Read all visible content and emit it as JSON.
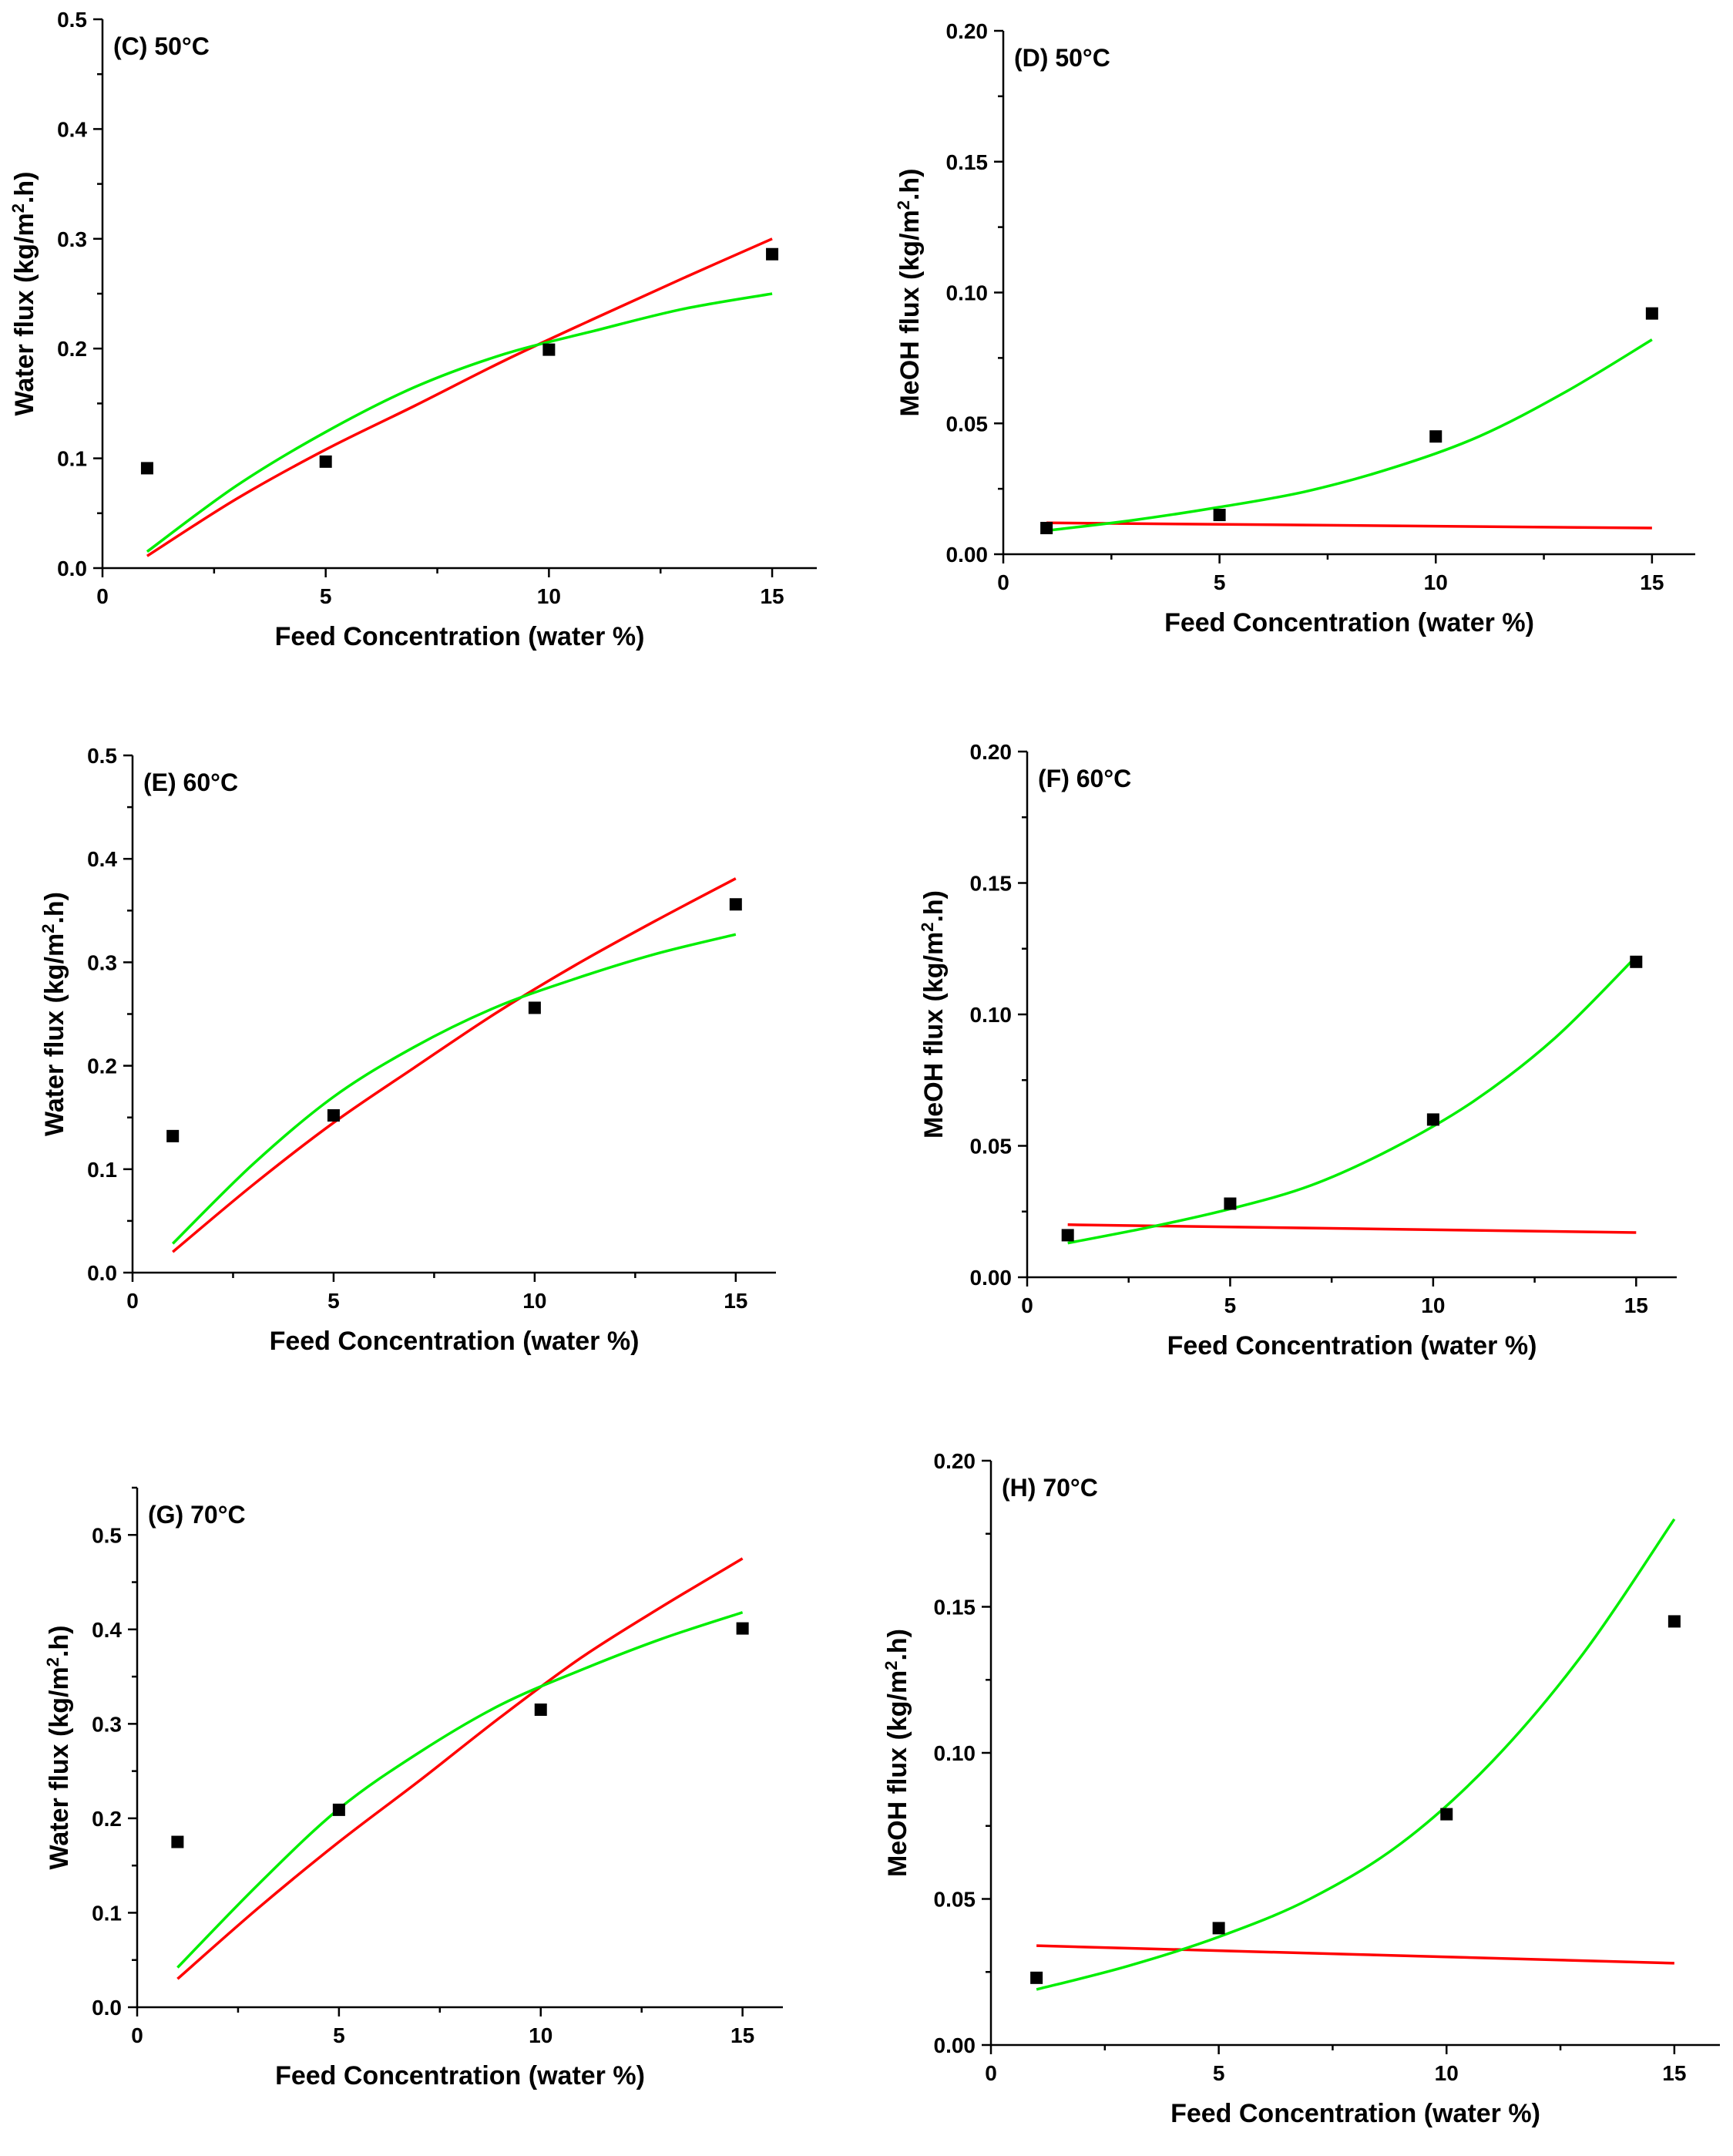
{
  "styles": {
    "colors": {
      "model_a": "#ff0000",
      "model_b": "#00ee00",
      "points": "#000000"
    }
  },
  "chart_data": [
    {
      "type": "scatter",
      "panel_label": "(C) 50°C",
      "xlabel": "Feed Concentration (water %)",
      "ylabel_main": "Water flux (kg/m",
      "ylabel_sup": "2",
      "ylabel_tail": ".h)",
      "xlim": [
        0,
        16
      ],
      "ylim": [
        0,
        0.5
      ],
      "xticks": [
        0,
        5,
        10,
        15
      ],
      "yticks": [
        0.0,
        0.1,
        0.2,
        0.3,
        0.4,
        0.5
      ],
      "ytick_labels": [
        "0.0",
        "0.1",
        "0.2",
        "0.3",
        "0.4",
        "0.5"
      ],
      "points": {
        "x": [
          1,
          5,
          10,
          15
        ],
        "y": [
          0.091,
          0.097,
          0.199,
          0.286
        ]
      },
      "series": [
        {
          "name": "red fit",
          "color": "#ff0000",
          "x": [
            1,
            3,
            5,
            7,
            9,
            11,
            13,
            15
          ],
          "y": [
            0.011,
            0.063,
            0.108,
            0.148,
            0.189,
            0.227,
            0.264,
            0.3
          ]
        },
        {
          "name": "green fit",
          "color": "#00ee00",
          "x": [
            1,
            3,
            5,
            7,
            9,
            11,
            13,
            15
          ],
          "y": [
            0.015,
            0.075,
            0.124,
            0.165,
            0.195,
            0.216,
            0.236,
            0.25
          ]
        }
      ]
    },
    {
      "type": "scatter",
      "panel_label": "(D) 50°C",
      "xlabel": "Feed Concentration (water %)",
      "ylabel_main": "MeOH flux (kg/m",
      "ylabel_sup": "2",
      "ylabel_tail": ".h)",
      "xlim": [
        0,
        16
      ],
      "ylim": [
        0,
        0.2
      ],
      "xticks": [
        0,
        5,
        10,
        15
      ],
      "yticks": [
        0.0,
        0.05,
        0.1,
        0.15,
        0.2
      ],
      "ytick_labels": [
        "0.00",
        "0.05",
        "0.10",
        "0.15",
        "0.20"
      ],
      "points": {
        "x": [
          1,
          5,
          10,
          15
        ],
        "y": [
          0.01,
          0.015,
          0.045,
          0.092
        ]
      },
      "series": [
        {
          "name": "red fit",
          "color": "#ff0000",
          "x": [
            1,
            15
          ],
          "y": [
            0.012,
            0.01
          ]
        },
        {
          "name": "green fit",
          "color": "#00ee00",
          "x": [
            1,
            3,
            5,
            7,
            9,
            11,
            13,
            15
          ],
          "y": [
            0.009,
            0.013,
            0.018,
            0.024,
            0.033,
            0.045,
            0.062,
            0.082
          ]
        }
      ]
    },
    {
      "type": "scatter",
      "panel_label": "(E) 60°C",
      "xlabel": "Feed Concentration (water %)",
      "ylabel_main": "Water flux (kg/m",
      "ylabel_sup": "2",
      "ylabel_tail": ".h)",
      "xlim": [
        0,
        16
      ],
      "ylim": [
        0,
        0.5
      ],
      "xticks": [
        0,
        5,
        10,
        15
      ],
      "yticks": [
        0.0,
        0.1,
        0.2,
        0.3,
        0.4,
        0.5
      ],
      "ytick_labels": [
        "0.0",
        "0.1",
        "0.2",
        "0.3",
        "0.4",
        "0.5"
      ],
      "points": {
        "x": [
          1,
          5,
          10,
          15
        ],
        "y": [
          0.132,
          0.152,
          0.256,
          0.356
        ]
      },
      "series": [
        {
          "name": "red fit",
          "color": "#ff0000",
          "x": [
            1,
            3,
            5,
            7,
            9,
            11,
            13,
            15
          ],
          "y": [
            0.02,
            0.085,
            0.145,
            0.198,
            0.25,
            0.297,
            0.34,
            0.381
          ]
        },
        {
          "name": "green fit",
          "color": "#00ee00",
          "x": [
            1,
            3,
            5,
            7,
            9,
            11,
            13,
            15
          ],
          "y": [
            0.028,
            0.105,
            0.17,
            0.218,
            0.256,
            0.284,
            0.308,
            0.327
          ]
        }
      ]
    },
    {
      "type": "scatter",
      "panel_label": "(F) 60°C",
      "xlabel": "Feed Concentration (water %)",
      "ylabel_main": "MeOH flux (kg/m",
      "ylabel_sup": "2",
      "ylabel_tail": ".h)",
      "xlim": [
        0,
        16
      ],
      "ylim": [
        0,
        0.2
      ],
      "xticks": [
        0,
        5,
        10,
        15
      ],
      "yticks": [
        0.0,
        0.05,
        0.1,
        0.15,
        0.2
      ],
      "ytick_labels": [
        "0.00",
        "0.05",
        "0.10",
        "0.15",
        "0.20"
      ],
      "points": {
        "x": [
          1,
          5,
          10,
          15
        ],
        "y": [
          0.016,
          0.028,
          0.06,
          0.12
        ]
      },
      "series": [
        {
          "name": "red fit",
          "color": "#ff0000",
          "x": [
            1,
            15
          ],
          "y": [
            0.02,
            0.017
          ]
        },
        {
          "name": "green fit",
          "color": "#00ee00",
          "x": [
            1,
            3,
            5,
            7,
            9,
            11,
            13,
            15
          ],
          "y": [
            0.013,
            0.019,
            0.026,
            0.035,
            0.049,
            0.067,
            0.091,
            0.122
          ]
        }
      ]
    },
    {
      "type": "scatter",
      "panel_label": "(G) 70°C",
      "xlabel": "Feed Concentration (water %)",
      "ylabel_main": "Water flux (kg/m",
      "ylabel_sup": "2",
      "ylabel_tail": ".h)",
      "xlim": [
        0,
        16
      ],
      "ylim": [
        0,
        0.55
      ],
      "xticks": [
        0,
        5,
        10,
        15
      ],
      "yticks": [
        0.0,
        0.1,
        0.2,
        0.3,
        0.4,
        0.5
      ],
      "ytick_labels": [
        "0.0",
        "0.1",
        "0.2",
        "0.3",
        "0.4",
        "0.5"
      ],
      "points": {
        "x": [
          1,
          5,
          10,
          15
        ],
        "y": [
          0.175,
          0.209,
          0.315,
          0.401
        ]
      },
      "series": [
        {
          "name": "red fit",
          "color": "#ff0000",
          "x": [
            1,
            3,
            5,
            7,
            9,
            11,
            13,
            15
          ],
          "y": [
            0.03,
            0.105,
            0.175,
            0.24,
            0.307,
            0.37,
            0.424,
            0.475
          ]
        },
        {
          "name": "green fit",
          "color": "#00ee00",
          "x": [
            1,
            3,
            5,
            7,
            9,
            11,
            13,
            15
          ],
          "y": [
            0.042,
            0.13,
            0.21,
            0.27,
            0.32,
            0.357,
            0.39,
            0.418
          ]
        }
      ]
    },
    {
      "type": "scatter",
      "panel_label": "(H) 70°C",
      "xlabel": "Feed Concentration (water %)",
      "ylabel_main": "MeOH flux (kg/m",
      "ylabel_sup": "2",
      "ylabel_tail": ".h)",
      "xlim": [
        0,
        16
      ],
      "ylim": [
        0,
        0.2
      ],
      "xticks": [
        0,
        5,
        10,
        15
      ],
      "yticks": [
        0.0,
        0.05,
        0.1,
        0.15,
        0.2
      ],
      "ytick_labels": [
        "0.00",
        "0.05",
        "0.10",
        "0.15",
        "0.20"
      ],
      "points": {
        "x": [
          1,
          5,
          10,
          15
        ],
        "y": [
          0.023,
          0.04,
          0.079,
          0.145
        ]
      },
      "series": [
        {
          "name": "red fit",
          "color": "#ff0000",
          "x": [
            1,
            15
          ],
          "y": [
            0.034,
            0.028
          ]
        },
        {
          "name": "green fit",
          "color": "#00ee00",
          "x": [
            1,
            3,
            5,
            7,
            9,
            11,
            13,
            15
          ],
          "y": [
            0.019,
            0.027,
            0.037,
            0.05,
            0.069,
            0.097,
            0.134,
            0.18
          ]
        }
      ]
    }
  ]
}
